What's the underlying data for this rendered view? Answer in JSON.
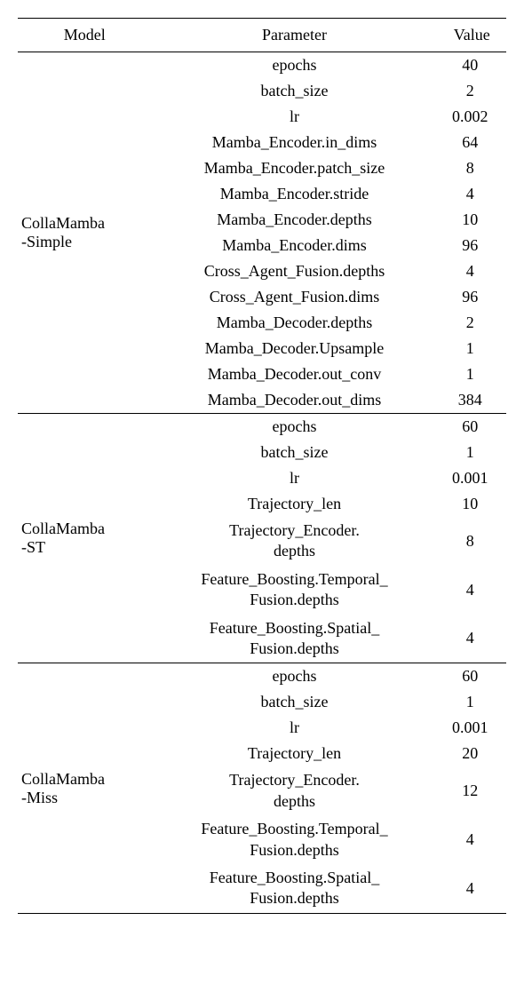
{
  "header": {
    "model": "Model",
    "parameter": "Parameter",
    "value": "Value"
  },
  "sections": [
    {
      "model_lines": [
        "CollaMamba",
        "-Simple"
      ],
      "rows": [
        {
          "param": "epochs",
          "value": "40"
        },
        {
          "param": "batch_size",
          "value": "2"
        },
        {
          "param": "lr",
          "value": "0.002"
        },
        {
          "param": "Mamba_Encoder.in_dims",
          "value": "64"
        },
        {
          "param": "Mamba_Encoder.patch_size",
          "value": "8"
        },
        {
          "param": "Mamba_Encoder.stride",
          "value": "4"
        },
        {
          "param": "Mamba_Encoder.depths",
          "value": "10"
        },
        {
          "param": "Mamba_Encoder.dims",
          "value": "96"
        },
        {
          "param": "Cross_Agent_Fusion.depths",
          "value": "4"
        },
        {
          "param": "Cross_Agent_Fusion.dims",
          "value": "96"
        },
        {
          "param": "Mamba_Decoder.depths",
          "value": "2"
        },
        {
          "param": "Mamba_Decoder.Upsample",
          "value": "1"
        },
        {
          "param": "Mamba_Decoder.out_conv",
          "value": "1"
        },
        {
          "param": "Mamba_Decoder.out_dims",
          "value": "384"
        }
      ]
    },
    {
      "model_lines": [
        "CollaMamba",
        "-ST"
      ],
      "rows": [
        {
          "param": "epochs",
          "value": "60"
        },
        {
          "param": "batch_size",
          "value": "1"
        },
        {
          "param": "lr",
          "value": "0.001"
        },
        {
          "param": "Trajectory_len",
          "value": "10"
        },
        {
          "param_lines": [
            "Trajectory_Encoder.",
            "depths"
          ],
          "value": "8"
        },
        {
          "param_lines": [
            "Feature_Boosting.Temporal_",
            "Fusion.depths"
          ],
          "value": "4"
        },
        {
          "param_lines": [
            "Feature_Boosting.Spatial_",
            "Fusion.depths"
          ],
          "value": "4"
        }
      ]
    },
    {
      "model_lines": [
        "CollaMamba",
        "-Miss"
      ],
      "rows": [
        {
          "param": "epochs",
          "value": "60"
        },
        {
          "param": "batch_size",
          "value": "1"
        },
        {
          "param": "lr",
          "value": "0.001"
        },
        {
          "param": "Trajectory_len",
          "value": "20"
        },
        {
          "param_lines": [
            "Trajectory_Encoder.",
            "depths"
          ],
          "value": "12"
        },
        {
          "param_lines": [
            "Feature_Boosting.Temporal_",
            "Fusion.depths"
          ],
          "value": "4"
        },
        {
          "param_lines": [
            "Feature_Boosting.Spatial_",
            "Fusion.depths"
          ],
          "value": "4"
        }
      ]
    }
  ]
}
